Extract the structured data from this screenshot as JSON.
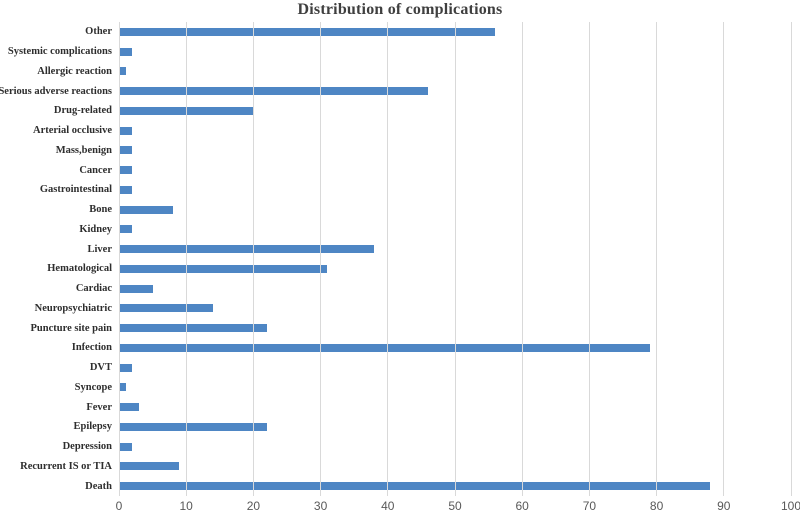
{
  "chart_data": {
    "type": "bar",
    "orientation": "horizontal",
    "title": "Distribution of complications",
    "categories": [
      "Other",
      "Systemic complications",
      "Allergic reaction",
      "Serious adverse reactions",
      "Drug-related",
      "Arterial occlusive",
      "Mass,benign",
      "Cancer",
      "Gastrointestinal",
      "Bone",
      "Kidney",
      "Liver",
      "Hematological",
      "Cardiac",
      "Neuropsychiatric",
      "Puncture site pain",
      "Infection",
      "DVT",
      "Syncope",
      "Fever",
      "Epilepsy",
      "Depression",
      "Recurrent IS or TIA",
      "Death"
    ],
    "values": [
      56,
      2,
      1,
      46,
      20,
      2,
      2,
      2,
      2,
      8,
      2,
      38,
      31,
      5,
      14,
      22,
      79,
      2,
      1,
      3,
      22,
      2,
      9,
      88
    ],
    "xlabel": "",
    "ylabel": "",
    "xlim": [
      0,
      100
    ],
    "xticks": [
      0,
      10,
      20,
      30,
      40,
      50,
      60,
      70,
      80,
      90,
      100
    ],
    "grid": "vertical",
    "legend": "none",
    "bar_color": "#4E86C4",
    "gridline_color": "#D9D9D9",
    "title_color": "#3F3F3F",
    "tick_color": "#595959",
    "label_color": "#2E2E2E"
  }
}
